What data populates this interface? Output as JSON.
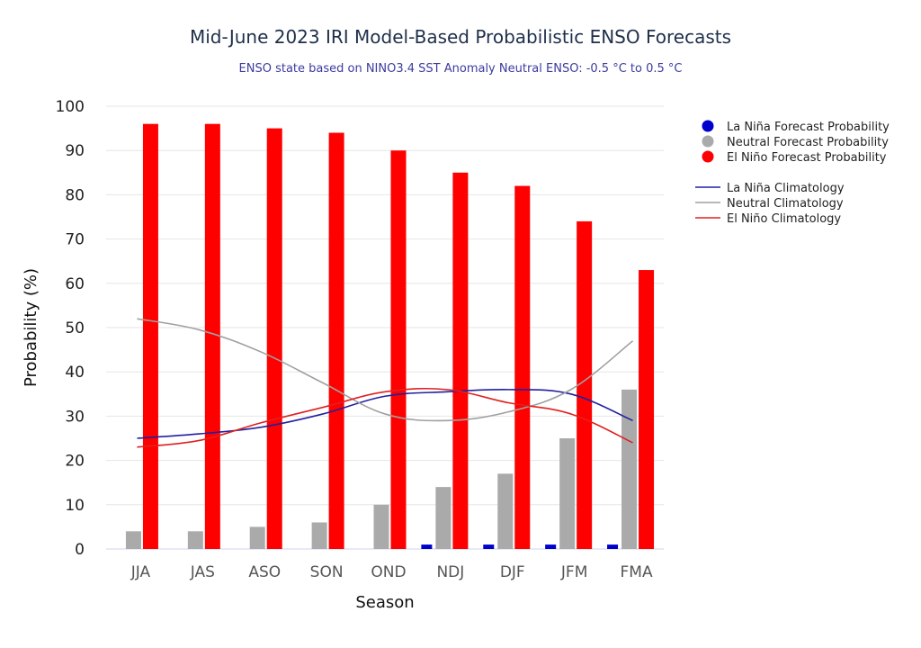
{
  "chart_data": {
    "type": "bar",
    "title": "Mid-June 2023 IRI Model-Based Probabilistic ENSO Forecasts",
    "subtitle": "ENSO state based on NINO3.4 SST Anomaly Neutral ENSO: -0.5 °C to 0.5 °C",
    "xlabel": "Season",
    "ylabel": "Probability (%)",
    "ylim": [
      0,
      100
    ],
    "yticks": [
      0,
      10,
      20,
      30,
      40,
      50,
      60,
      70,
      80,
      90,
      100
    ],
    "grid": true,
    "legend_position": "right",
    "categories": [
      "JJA",
      "JAS",
      "ASO",
      "SON",
      "OND",
      "NDJ",
      "DJF",
      "JFM",
      "FMA"
    ],
    "series": [
      {
        "name": "La Niña Forecast Probability",
        "kind": "bar",
        "color": "#0000cc",
        "legend_symbol": "dot",
        "values": [
          0,
          0,
          0,
          0,
          0,
          1,
          1,
          1,
          1
        ]
      },
      {
        "name": "Neutral Forecast Probability",
        "kind": "bar",
        "color": "#aaaaaa",
        "legend_symbol": "dot",
        "values": [
          4,
          4,
          5,
          6,
          10,
          14,
          17,
          25,
          36
        ]
      },
      {
        "name": "El Niño Forecast Probability",
        "kind": "bar",
        "color": "#ff0000",
        "legend_symbol": "dot",
        "values": [
          96,
          96,
          95,
          94,
          90,
          85,
          82,
          74,
          63
        ]
      },
      {
        "name": "La Niña Climatology",
        "kind": "line",
        "color": "#2020a0",
        "legend_symbol": "line",
        "values": [
          25,
          26,
          27.5,
          30.5,
          34.5,
          35.5,
          36,
          35,
          29
        ]
      },
      {
        "name": "Neutral Climatology",
        "kind": "line",
        "color": "#a0a0a0",
        "legend_symbol": "line",
        "values": [
          52,
          49.5,
          44.5,
          37.5,
          30.5,
          29,
          31,
          36,
          47
        ]
      },
      {
        "name": "El Niño Climatology",
        "kind": "line",
        "color": "#e02020",
        "legend_symbol": "line",
        "values": [
          23,
          24.5,
          28.5,
          32,
          35.5,
          36,
          33,
          30.5,
          24
        ]
      }
    ]
  }
}
